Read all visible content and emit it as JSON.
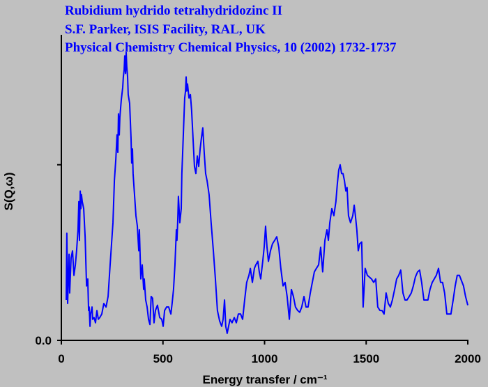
{
  "chart_data": {
    "type": "line",
    "title_lines": [
      "Rubidium hydrido tetrahydridozinc II",
      "S.F. Parker, ISIS Facility, RAL, UK",
      "Physical Chemistry Chemical Physics, 10 (2002) 1732-1737"
    ],
    "x_label": "Energy transfer / cm⁻¹",
    "y_label": "S(Q,ω)",
    "xlim": [
      0,
      2000
    ],
    "xticks": [
      0,
      500,
      1000,
      1500,
      2000
    ],
    "ylim": [
      0,
      1.74
    ],
    "yticks": [
      {
        "value": 0,
        "label": "0.0"
      }
    ],
    "yticks_unlabeled": [
      1
    ],
    "grid": false,
    "x": [
      24,
      27,
      31,
      38,
      41,
      48,
      55,
      62,
      69,
      75,
      82,
      86,
      89,
      93,
      96,
      99,
      103,
      110,
      117,
      124,
      130,
      134,
      137,
      141,
      144,
      151,
      154,
      161,
      168,
      175,
      182,
      189,
      199,
      209,
      220,
      230,
      240,
      247,
      254,
      261,
      268,
      274,
      278,
      281,
      285,
      288,
      295,
      302,
      305,
      309,
      312,
      316,
      319,
      322,
      326,
      329,
      336,
      343,
      346,
      350,
      353,
      360,
      367,
      374,
      381,
      384,
      391,
      398,
      405,
      408,
      415,
      422,
      429,
      436,
      442,
      449,
      456,
      463,
      473,
      484,
      494,
      501,
      508,
      518,
      528,
      539,
      545,
      552,
      559,
      566,
      569,
      573,
      576,
      583,
      590,
      593,
      597,
      604,
      607,
      611,
      614,
      617,
      621,
      628,
      635,
      641,
      648,
      655,
      662,
      669,
      676,
      683,
      689,
      696,
      703,
      710,
      717,
      727,
      737,
      748,
      758,
      768,
      779,
      789,
      796,
      803,
      809,
      816,
      823,
      830,
      840,
      851,
      861,
      871,
      882,
      892,
      902,
      912,
      923,
      930,
      940,
      950,
      957,
      967,
      974,
      981,
      991,
      998,
      1005,
      1012,
      1019,
      1029,
      1039,
      1050,
      1060,
      1070,
      1080,
      1091,
      1101,
      1111,
      1122,
      1132,
      1142,
      1152,
      1163,
      1173,
      1183,
      1194,
      1204,
      1214,
      1225,
      1235,
      1245,
      1255,
      1266,
      1276,
      1286,
      1297,
      1307,
      1314,
      1321,
      1331,
      1341,
      1351,
      1358,
      1365,
      1372,
      1379,
      1386,
      1393,
      1400,
      1406,
      1413,
      1423,
      1434,
      1441,
      1447,
      1454,
      1461,
      1468,
      1478,
      1485,
      1495,
      1506,
      1516,
      1526,
      1537,
      1547,
      1557,
      1568,
      1578,
      1588,
      1598,
      1609,
      1619,
      1629,
      1640,
      1650,
      1660,
      1670,
      1681,
      1691,
      1701,
      1712,
      1722,
      1732,
      1742,
      1753,
      1763,
      1773,
      1784,
      1794,
      1804,
      1814,
      1825,
      1835,
      1845,
      1856,
      1866,
      1876,
      1886,
      1897,
      1907,
      1917,
      1928,
      1938,
      1948,
      1959,
      1969,
      1979,
      1989,
      2000
    ],
    "series": [
      {
        "color": "#0000ff",
        "values": [
          0.23,
          0.61,
          0.21,
          0.49,
          0.27,
          0.47,
          0.51,
          0.37,
          0.43,
          0.51,
          0.63,
          0.79,
          0.57,
          0.85,
          0.75,
          0.83,
          0.79,
          0.75,
          0.59,
          0.31,
          0.35,
          0.17,
          0.19,
          0.08,
          0.15,
          0.19,
          0.12,
          0.13,
          0.1,
          0.17,
          0.12,
          0.13,
          0.15,
          0.21,
          0.19,
          0.25,
          0.43,
          0.55,
          0.67,
          0.91,
          1.03,
          1.17,
          1.07,
          1.29,
          1.17,
          1.27,
          1.37,
          1.44,
          1.5,
          1.54,
          1.62,
          1.52,
          1.64,
          1.56,
          1.5,
          1.4,
          1.35,
          1.15,
          1.01,
          1.09,
          0.95,
          0.83,
          0.71,
          0.65,
          0.51,
          0.63,
          0.35,
          0.43,
          0.29,
          0.35,
          0.23,
          0.19,
          0.12,
          0.09,
          0.25,
          0.24,
          0.1,
          0.17,
          0.2,
          0.13,
          0.12,
          0.08,
          0.17,
          0.19,
          0.19,
          0.15,
          0.21,
          0.29,
          0.43,
          0.63,
          0.57,
          0.69,
          0.82,
          0.67,
          0.75,
          0.95,
          1.07,
          1.29,
          1.38,
          1.42,
          1.5,
          1.42,
          1.46,
          1.38,
          1.4,
          1.31,
          1.15,
          0.99,
          0.95,
          1.05,
          0.99,
          1.09,
          1.15,
          1.21,
          1.07,
          0.95,
          0.91,
          0.83,
          0.67,
          0.51,
          0.35,
          0.17,
          0.11,
          0.08,
          0.12,
          0.23,
          0.08,
          0.04,
          0.08,
          0.12,
          0.1,
          0.13,
          0.1,
          0.15,
          0.15,
          0.12,
          0.23,
          0.33,
          0.37,
          0.41,
          0.33,
          0.41,
          0.43,
          0.45,
          0.39,
          0.35,
          0.45,
          0.53,
          0.65,
          0.53,
          0.45,
          0.51,
          0.55,
          0.57,
          0.59,
          0.53,
          0.41,
          0.31,
          0.33,
          0.25,
          0.12,
          0.29,
          0.25,
          0.19,
          0.17,
          0.16,
          0.19,
          0.25,
          0.19,
          0.19,
          0.27,
          0.33,
          0.39,
          0.41,
          0.43,
          0.53,
          0.39,
          0.57,
          0.63,
          0.57,
          0.67,
          0.75,
          0.71,
          0.79,
          0.89,
          0.97,
          1.0,
          0.95,
          0.95,
          0.91,
          0.85,
          0.87,
          0.71,
          0.67,
          0.71,
          0.77,
          0.71,
          0.63,
          0.51,
          0.55,
          0.56,
          0.19,
          0.41,
          0.37,
          0.36,
          0.35,
          0.33,
          0.35,
          0.19,
          0.17,
          0.17,
          0.15,
          0.27,
          0.21,
          0.19,
          0.23,
          0.29,
          0.35,
          0.37,
          0.4,
          0.27,
          0.23,
          0.23,
          0.25,
          0.27,
          0.31,
          0.36,
          0.39,
          0.4,
          0.33,
          0.23,
          0.23,
          0.23,
          0.29,
          0.33,
          0.35,
          0.37,
          0.41,
          0.33,
          0.33,
          0.27,
          0.15,
          0.15,
          0.15,
          0.23,
          0.31,
          0.37,
          0.37,
          0.34,
          0.31,
          0.25,
          0.2
        ]
      }
    ]
  }
}
